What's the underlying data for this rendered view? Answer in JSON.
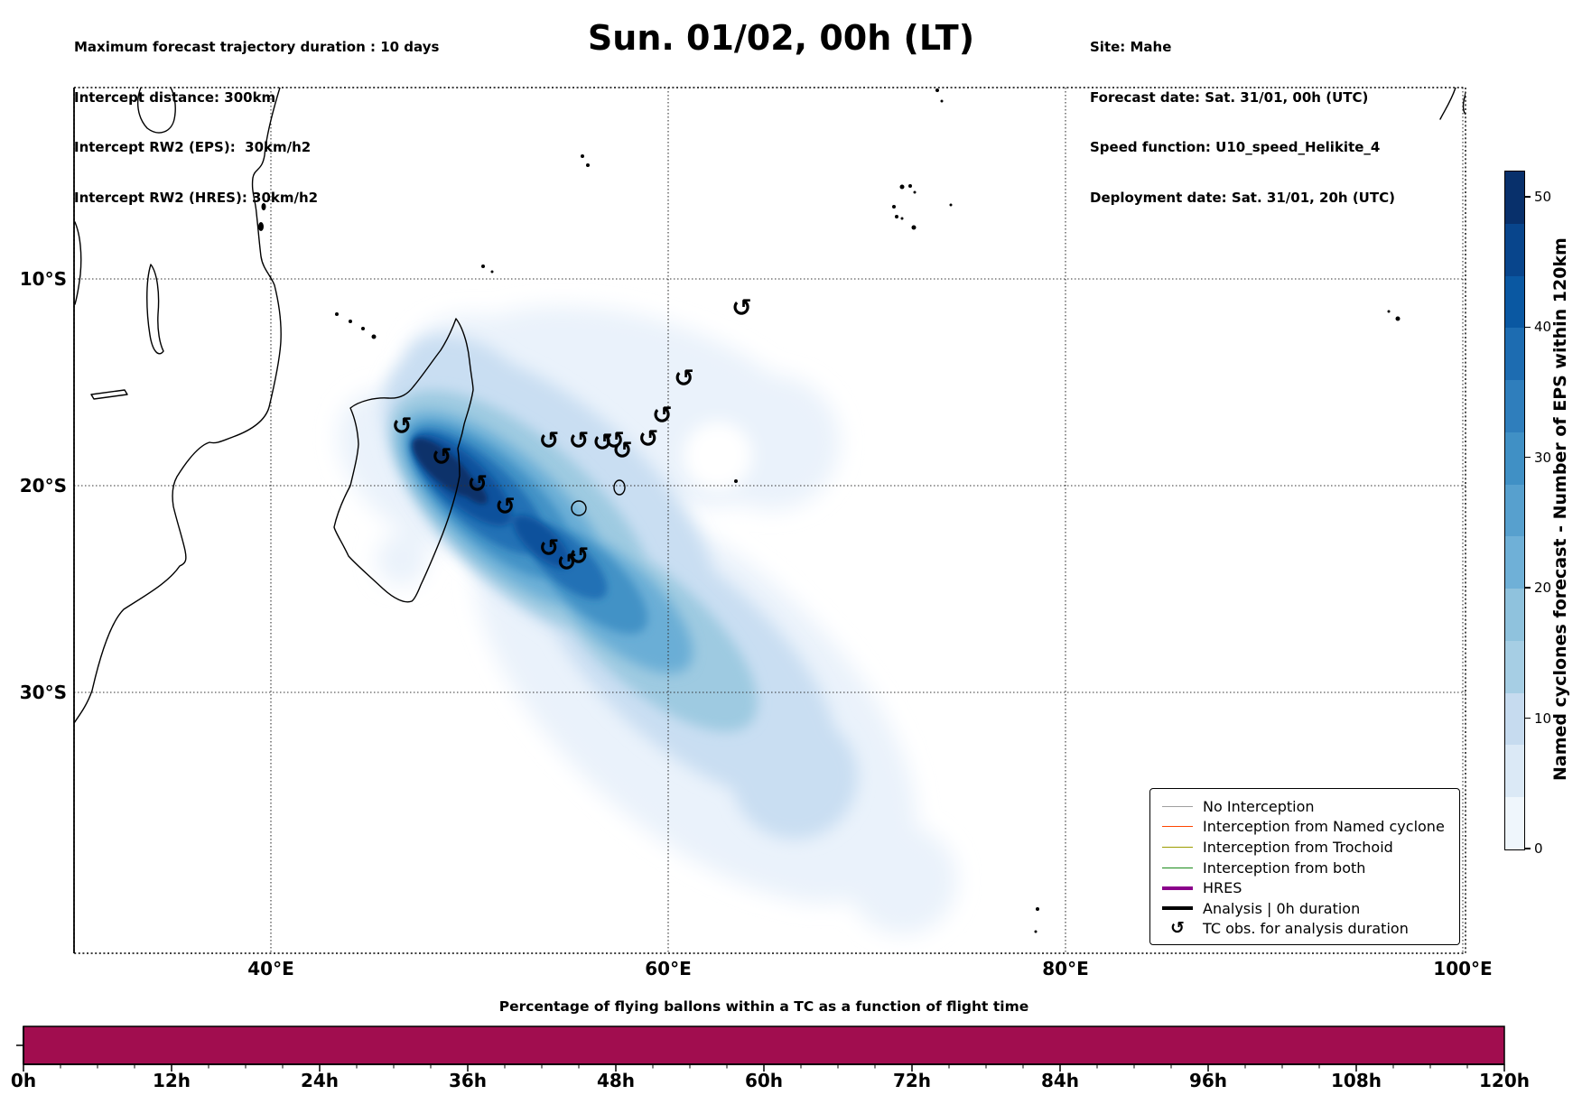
{
  "figure_title": "Sun. 01/02, 00h (LT)",
  "header_left": {
    "lines": [
      "Maximum forecast trajectory duration : 10 days",
      "Intercept distance: 300km",
      "Intercept RW2 (EPS):  30km/h2",
      "Intercept RW2 (HRES): 30km/h2"
    ]
  },
  "header_right": {
    "lines": [
      "Site: Mahe",
      "Forecast date: Sat. 31/01, 00h (UTC)",
      "Speed function: U10_speed_Helikite_4",
      "Deployment date: Sat. 31/01, 20h (UTC)"
    ]
  },
  "map": {
    "x_tick_labels": [
      "40°E",
      "60°E",
      "80°E",
      "100°E"
    ],
    "y_tick_labels": [
      "10°S",
      "20°S",
      "30°S"
    ],
    "legend": {
      "items": [
        {
          "label": "No Interception",
          "color": "#a0a0a0",
          "kind": "line"
        },
        {
          "label": "Interception from Named cyclone",
          "color": "#ff4500",
          "kind": "line"
        },
        {
          "label": "Interception from Trochoid",
          "color": "#9c9c00",
          "kind": "line"
        },
        {
          "label": "Interception from both",
          "color": "#1a8a1a",
          "kind": "line"
        },
        {
          "label": "HRES",
          "color": "#8b008b",
          "kind": "thick"
        },
        {
          "label": "Analysis | 0h duration",
          "color": "#000000",
          "kind": "thick"
        },
        {
          "label": "TC obs. for analysis duration",
          "color": "#000000",
          "kind": "marker",
          "marker": "↺"
        }
      ]
    }
  },
  "colorbar": {
    "label": "Named cyclones forecast - Number of EPS within 120km",
    "tick_values": [
      0,
      10,
      20,
      30,
      40,
      50
    ],
    "tick_labels": [
      "0",
      "10",
      "20",
      "30",
      "40",
      "50"
    ],
    "vmax": 52,
    "colors_top_to_bottom": [
      "#08306b",
      "#08458c",
      "#0a58a2",
      "#1d6cb1",
      "#2f7ebc",
      "#4090c5",
      "#57a0ce",
      "#6fb0d7",
      "#8fc2dd",
      "#a6cee4",
      "#c6dbef",
      "#dbe9f6",
      "#eff6fc"
    ]
  },
  "bottom_chart": {
    "title": "Percentage of flying ballons within a TC as a function of flight time",
    "x_tick_labels": [
      "0h",
      "12h",
      "24h",
      "36h",
      "48h",
      "60h",
      "72h",
      "84h",
      "96h",
      "108h",
      "120h"
    ],
    "bar_color": "#A10D4F"
  },
  "chart_data": [
    {
      "type": "heatmap",
      "title": "Sun. 01/02, 00h (LT)",
      "description": "Map of EPS named-cyclone forecast density (Blues colormap) around Madagascar / SW Indian Ocean, with observed TC positions marked",
      "x_axis": {
        "label_type": "longitude",
        "ticks": [
          40,
          60,
          80,
          100
        ],
        "range": [
          30.1,
          100.1
        ]
      },
      "y_axis": {
        "label_type": "latitude",
        "ticks": [
          -10,
          -20,
          -30
        ],
        "range": [
          -42.6,
          -0.7
        ]
      },
      "colormap": "Blues",
      "vmin": 0,
      "vmax": 52,
      "density_plume": "dark core at ~49E,19S on NE Madagascar coast extending SE to ~62E,33S, light halo curling NE to ~68E,13S",
      "tc_marker_glyph": "↺",
      "tc_obs_lonlat": [
        [
          46.6,
          -17.2
        ],
        [
          48.6,
          -18.7
        ],
        [
          50.4,
          -20.0
        ],
        [
          51.8,
          -21.1
        ],
        [
          54.0,
          -23.1
        ],
        [
          54.9,
          -23.8
        ],
        [
          55.5,
          -23.5
        ],
        [
          54.0,
          -17.9
        ],
        [
          55.5,
          -17.9
        ],
        [
          56.7,
          -18.0
        ],
        [
          57.3,
          -17.9
        ],
        [
          57.7,
          -18.4
        ],
        [
          59.0,
          -17.8
        ],
        [
          59.7,
          -16.7
        ],
        [
          60.8,
          -14.9
        ],
        [
          63.7,
          -11.5
        ]
      ]
    },
    {
      "type": "bar",
      "title": "Percentage of flying ballons within a TC as a function of flight time",
      "x_tick_values": [
        0,
        12,
        24,
        36,
        48,
        60,
        72,
        84,
        96,
        108,
        120
      ],
      "x_range_hours": [
        0,
        120
      ],
      "minor_tick_step_hours": 3,
      "value_percent": 100,
      "ylim": [
        0,
        100
      ],
      "y_tick_values": [
        50
      ],
      "color": "#A10D4F"
    }
  ]
}
